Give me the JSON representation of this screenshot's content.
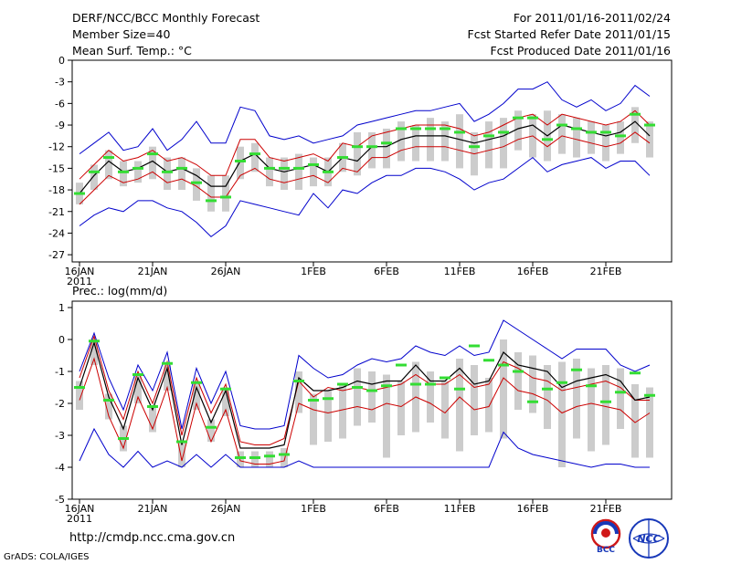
{
  "header": {
    "title": "DERF/NCC/BCC Monthly Forecast",
    "member_size": "Member Size=40",
    "variable": "Mean Surf. Temp.: °C",
    "for_period": "For 2011/01/16-2011/02/24",
    "started": "Fcst Started Refer Date 2011/01/15",
    "produced": "Fcst Produced Date 2011/01/16"
  },
  "footer": {
    "url": "http://cmdp.ncc.cma.gov.cn",
    "credit": "GrADS: COLA/IGES",
    "logo_left": "BCC",
    "logo_right": "NCC"
  },
  "colors": {
    "ensemble_mean": "#000000",
    "envelope": "#0000cc",
    "spread": "#cc0000",
    "box": "#cccccc",
    "marker": "#33dd33"
  },
  "chart_data": [
    {
      "type": "box",
      "title": "Mean Surf. Temp.: °C",
      "ylim": [
        -28,
        0
      ],
      "yticks": [
        "0",
        "-3",
        "-6",
        "-9",
        "-12",
        "-15",
        "-18",
        "-21",
        "-24",
        "-27"
      ],
      "ytick_values": [
        0,
        -3,
        -6,
        -9,
        -12,
        -15,
        -18,
        -21,
        -24,
        -27
      ],
      "xtick_labels": [
        "16JAN",
        "21JAN",
        "26JAN",
        "1FEB",
        "6FEB",
        "11FEB",
        "16FEB",
        "21FEB"
      ],
      "xtick_days": [
        1,
        6,
        11,
        17,
        22,
        27,
        32,
        37
      ],
      "xlabel_year": "2011",
      "days": [
        1,
        2,
        3,
        4,
        5,
        6,
        7,
        8,
        9,
        10,
        11,
        12,
        13,
        14,
        15,
        16,
        17,
        18,
        19,
        20,
        21,
        22,
        23,
        24,
        25,
        26,
        27,
        28,
        29,
        30,
        31,
        32,
        33,
        34,
        35,
        36,
        37,
        38,
        39,
        40
      ],
      "mean": [
        -18.5,
        -16,
        -14,
        -15.5,
        -15,
        -14,
        -15.5,
        -15,
        -16,
        -17.5,
        -17.5,
        -14,
        -13,
        -15,
        -15.5,
        -15,
        -14.5,
        -15.5,
        -13.5,
        -14,
        -12,
        -12,
        -11,
        -10.5,
        -10.5,
        -10.5,
        -11,
        -11.5,
        -11,
        -10.5,
        -9.5,
        -9,
        -10.5,
        -9,
        -9.5,
        -10,
        -10.5,
        -10,
        -8.5,
        -10.5
      ],
      "upper": [
        -16.5,
        -14.5,
        -12.5,
        -14,
        -13.5,
        -12.5,
        -14,
        -13.5,
        -14.5,
        -16,
        -16,
        -11,
        -11,
        -13.5,
        -14,
        -13.5,
        -13,
        -14,
        -11.5,
        -12,
        -10.5,
        -10,
        -9.5,
        -9,
        -9,
        -9,
        -9.5,
        -10.5,
        -10,
        -9,
        -8,
        -7.5,
        -9,
        -7.5,
        -8,
        -8.5,
        -9,
        -8.5,
        -7,
        -9
      ],
      "lower": [
        -20,
        -18,
        -16,
        -17,
        -16.5,
        -15.5,
        -17,
        -16.5,
        -17.5,
        -19,
        -19,
        -16,
        -15,
        -16.5,
        -17,
        -16.5,
        -16,
        -17,
        -15,
        -15.5,
        -13.5,
        -13.5,
        -12.5,
        -12,
        -12,
        -12,
        -12.5,
        -13,
        -12.5,
        -12,
        -11,
        -10.5,
        -12,
        -10.5,
        -11,
        -11.5,
        -12,
        -11.5,
        -10,
        -11.5
      ],
      "max": [
        -13,
        -11.5,
        -10,
        -12.5,
        -12,
        -9.5,
        -12.5,
        -11,
        -8.5,
        -11.5,
        -11.5,
        -6.5,
        -7,
        -10.5,
        -11,
        -10.5,
        -11.5,
        -11,
        -10.5,
        -9,
        -8.5,
        -8,
        -7.5,
        -7,
        -7,
        -6.5,
        -6,
        -8.5,
        -7.5,
        -6,
        -4,
        -4,
        -3,
        -5.5,
        -6.5,
        -5.5,
        -7,
        -6,
        -3.5,
        -5
      ],
      "min": [
        -23,
        -21.5,
        -20.5,
        -21,
        -19.5,
        -19.5,
        -20.5,
        -21,
        -22.5,
        -24.5,
        -23,
        -19.5,
        -20,
        -20.5,
        -21,
        -21.5,
        -18.5,
        -20.5,
        -18,
        -18.5,
        -17,
        -16,
        -16,
        -15,
        -15,
        -15.5,
        -16.5,
        -18,
        -17,
        -16.5,
        -15,
        -13.5,
        -15.5,
        -14.5,
        -14,
        -13.5,
        -15,
        -14,
        -14,
        -16
      ],
      "box_hi": [
        -17,
        -14.5,
        -12.5,
        -14,
        -14,
        -12,
        -13.5,
        -13.5,
        -15,
        -16,
        -16,
        -12,
        -11.5,
        -13.5,
        -13.5,
        -13,
        -13.5,
        -13.5,
        -11.5,
        -10,
        -10,
        -9.5,
        -8.5,
        -9,
        -8,
        -8.5,
        -7.5,
        -10,
        -8.5,
        -8,
        -7,
        -7.5,
        -7,
        -7.5,
        -8,
        -8.5,
        -9,
        -8.5,
        -6.5,
        -8.5
      ],
      "box_lo": [
        -20,
        -18,
        -16.5,
        -17.5,
        -17,
        -16.5,
        -18,
        -18,
        -19.5,
        -21,
        -21,
        -16.5,
        -15.5,
        -17.5,
        -18,
        -18,
        -17.5,
        -17.5,
        -15.5,
        -16,
        -15,
        -15,
        -14,
        -14,
        -14,
        -14,
        -15,
        -16,
        -15,
        -15,
        -12.5,
        -13.5,
        -14,
        -13,
        -13.5,
        -13,
        -14,
        -13,
        -11.5,
        -13.5
      ],
      "marker": [
        -18.5,
        -15.5,
        -13.5,
        -15.5,
        -15,
        -13,
        -15.5,
        -15,
        -17,
        -19.5,
        -19,
        -14,
        -13,
        -15,
        -15,
        -15,
        -14.5,
        -15.5,
        -13.5,
        -12,
        -12,
        -11.5,
        -9.5,
        -9.5,
        -9.5,
        -9.5,
        -10,
        -12,
        -10.5,
        -10,
        -8,
        -8,
        -11,
        -9,
        -9.5,
        -10,
        -10,
        -10.5,
        -7.5,
        -9
      ]
    },
    {
      "type": "box",
      "title": "Prec.: log(mm/d)",
      "ylim": [
        -5,
        1.2
      ],
      "yticks": [
        "1",
        "0",
        "-1",
        "-2",
        "-3",
        "-4",
        "-5"
      ],
      "ytick_values": [
        1,
        0,
        -1,
        -2,
        -3,
        -4,
        -5
      ],
      "xtick_labels": [
        "16JAN",
        "21JAN",
        "26JAN",
        "1FEB",
        "6FEB",
        "11FEB",
        "16FEB",
        "21FEB"
      ],
      "xtick_days": [
        1,
        6,
        11,
        17,
        22,
        27,
        32,
        37
      ],
      "xlabel_year": "2011",
      "days": [
        1,
        2,
        3,
        4,
        5,
        6,
        7,
        8,
        9,
        10,
        11,
        12,
        13,
        14,
        15,
        16,
        17,
        18,
        19,
        20,
        21,
        22,
        23,
        24,
        25,
        26,
        27,
        28,
        29,
        30,
        31,
        32,
        33,
        34,
        35,
        36,
        37,
        38,
        39,
        40
      ],
      "mean": [
        -1.5,
        -0.1,
        -1.8,
        -2.8,
        -1.2,
        -2.2,
        -0.9,
        -3.3,
        -1.5,
        -2.6,
        -1.6,
        -3.4,
        -3.4,
        -3.4,
        -3.3,
        -1.2,
        -1.6,
        -1.6,
        -1.5,
        -1.3,
        -1.4,
        -1.3,
        -1.3,
        -0.8,
        -1.3,
        -1.3,
        -0.9,
        -1.4,
        -1.3,
        -0.4,
        -0.8,
        -0.9,
        -1.0,
        -1.5,
        -1.3,
        -1.2,
        -1.1,
        -1.3,
        -1.9,
        -1.8
      ],
      "upper": [
        -1.2,
        0.1,
        -1.6,
        -2.5,
        -1.0,
        -2.0,
        -0.7,
        -3.0,
        -1.2,
        -2.3,
        -1.4,
        -3.2,
        -3.3,
        -3.3,
        -3.1,
        -1.3,
        -1.8,
        -1.5,
        -1.6,
        -1.5,
        -1.6,
        -1.5,
        -1.4,
        -1.1,
        -1.4,
        -1.4,
        -1.1,
        -1.5,
        -1.4,
        -0.7,
        -0.9,
        -1.2,
        -1.3,
        -1.6,
        -1.5,
        -1.4,
        -1.3,
        -1.5,
        -1.9,
        -1.9
      ],
      "lower": [
        -1.9,
        -0.6,
        -2.4,
        -3.4,
        -1.8,
        -2.8,
        -1.5,
        -3.8,
        -2.0,
        -3.2,
        -2.2,
        -3.8,
        -3.9,
        -3.9,
        -3.8,
        -2.0,
        -2.2,
        -2.3,
        -2.2,
        -2.1,
        -2.2,
        -2.0,
        -2.1,
        -1.8,
        -2.0,
        -2.3,
        -1.8,
        -2.2,
        -2.1,
        -1.2,
        -1.6,
        -1.7,
        -1.9,
        -2.3,
        -2.1,
        -2.0,
        -2.1,
        -2.2,
        -2.6,
        -2.3
      ],
      "max": [
        -1.0,
        0.2,
        -1.2,
        -2.2,
        -0.8,
        -1.6,
        -0.4,
        -2.8,
        -0.9,
        -2.0,
        -1.0,
        -2.7,
        -2.8,
        -2.8,
        -2.7,
        -0.5,
        -0.9,
        -1.2,
        -1.1,
        -0.8,
        -0.6,
        -0.7,
        -0.6,
        -0.2,
        -0.4,
        -0.5,
        -0.2,
        -0.5,
        -0.4,
        0.6,
        0.3,
        0.0,
        -0.3,
        -0.6,
        -0.3,
        -0.3,
        -0.3,
        -0.8,
        -1.0,
        -0.8
      ],
      "min": [
        -3.8,
        -2.8,
        -3.6,
        -4.0,
        -3.5,
        -4.0,
        -3.8,
        -4.0,
        -3.6,
        -4.0,
        -3.6,
        -4.0,
        -4.0,
        -4.0,
        -4.0,
        -3.8,
        -4.0,
        -4.0,
        -4.0,
        -4.0,
        -4.0,
        -4.0,
        -4.0,
        -4.0,
        -4.0,
        -4.0,
        -4.0,
        -4.0,
        -4.0,
        -2.9,
        -3.4,
        -3.6,
        -3.7,
        -3.8,
        -3.9,
        -4.0,
        -3.9,
        -3.9,
        -4.0,
        -4.0
      ],
      "box_hi": [
        -1.3,
        0.0,
        -1.7,
        -2.7,
        -1.1,
        -2.1,
        -0.8,
        -3.2,
        -1.3,
        -2.5,
        -1.5,
        -3.5,
        -3.5,
        -3.5,
        -3.4,
        -1.0,
        -1.7,
        -1.6,
        -1.4,
        -0.9,
        -1.0,
        -1.1,
        -1.3,
        -0.7,
        -1.0,
        -1.3,
        -0.6,
        -0.8,
        -1.2,
        0.0,
        -0.4,
        -0.5,
        -0.8,
        -0.7,
        -0.6,
        -0.9,
        -0.8,
        -0.9,
        -1.4,
        -1.5
      ],
      "box_lo": [
        -2.2,
        -0.8,
        -2.5,
        -3.5,
        -2.0,
        -2.9,
        -1.6,
        -4.0,
        -2.2,
        -3.2,
        -2.4,
        -4.0,
        -4.0,
        -4.0,
        -4.0,
        -2.3,
        -3.3,
        -3.2,
        -3.1,
        -2.7,
        -2.6,
        -3.7,
        -3.0,
        -2.9,
        -2.6,
        -3.1,
        -3.5,
        -3.0,
        -2.9,
        -3.1,
        -2.2,
        -2.3,
        -2.8,
        -4.0,
        -3.1,
        -3.5,
        -3.3,
        -2.8,
        -3.7,
        -3.7
      ],
      "marker": [
        -1.5,
        -0.05,
        -1.9,
        -3.1,
        -1.1,
        -2.1,
        -0.75,
        -3.2,
        -1.35,
        -2.75,
        -1.55,
        -3.7,
        -3.7,
        -3.65,
        -3.6,
        -1.3,
        -1.9,
        -1.85,
        -1.4,
        -1.5,
        -1.6,
        -1.45,
        -0.8,
        -1.4,
        -1.4,
        -1.2,
        -1.55,
        -0.2,
        -0.65,
        -0.8,
        -1.0,
        -1.95,
        -1.55,
        -1.35,
        -0.95,
        -1.45,
        -1.95,
        -1.65,
        -1.05,
        -1.75
      ]
    }
  ]
}
